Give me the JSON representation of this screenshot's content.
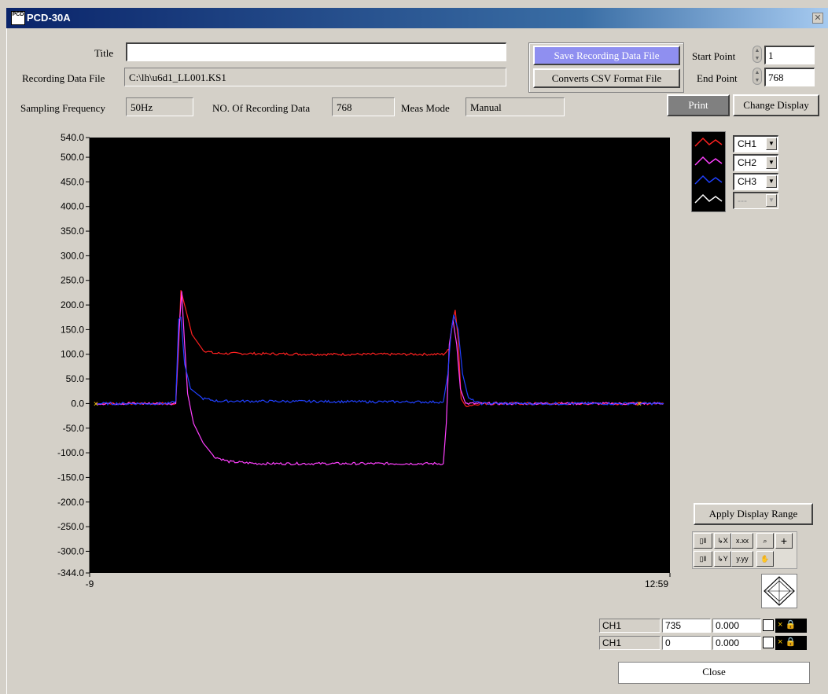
{
  "window": {
    "title": "PCD-30A",
    "app_icon": "PCD"
  },
  "header": {
    "title_label": "Title",
    "title_value": "",
    "recording_file_label": "Recording Data File",
    "recording_file_value": "C:\\lh\\u6d1_LL001.KS1",
    "sampling_label": "Sampling Frequency",
    "sampling_value": "50Hz",
    "num_data_label": "NO. Of Recording Data",
    "num_data_value": "768",
    "meas_mode_label": "Meas Mode",
    "meas_mode_value": "Manual"
  },
  "file_buttons": {
    "save": "Save Recording Data File",
    "convert": "Converts CSV Format File"
  },
  "range": {
    "start_label": "Start Point",
    "start_value": "1",
    "end_label": "End Point",
    "end_value": "768"
  },
  "actions": {
    "print": "Print",
    "change_display": "Change Display",
    "apply_range": "Apply Display Range",
    "close": "Close"
  },
  "channels": [
    {
      "label": "CH1",
      "color": "#ff2020"
    },
    {
      "label": "CH2",
      "color": "#ff40ff"
    },
    {
      "label": "CH3",
      "color": "#2040ff"
    },
    {
      "label": "---",
      "color": "#ffffff"
    }
  ],
  "graph_tools": {
    "x_format": "x.xx",
    "y_format": "y.yy"
  },
  "cursors": [
    {
      "channel": "CH1",
      "index": "735",
      "value": "0.000"
    },
    {
      "channel": "CH1",
      "index": "0",
      "value": "0.000"
    }
  ],
  "chart_data": {
    "type": "line",
    "ylim": [
      -344,
      540
    ],
    "yticks": [
      "540.0",
      "500.0",
      "450.0",
      "400.0",
      "350.0",
      "300.0",
      "250.0",
      "200.0",
      "150.0",
      "100.0",
      "50.0",
      "0.0",
      "-50.0",
      "-100.0",
      "-150.0",
      "-200.0",
      "-250.0",
      "-300.0",
      "-344.0"
    ],
    "xtick_labels": [
      "-9",
      "12:59"
    ],
    "x_sample_range": [
      0,
      768
    ],
    "background": "#000000",
    "series": [
      {
        "name": "CH1",
        "color": "#ff2020",
        "points": [
          [
            0,
            0
          ],
          [
            100,
            0
          ],
          [
            108,
            0
          ],
          [
            112,
            120
          ],
          [
            115,
            230
          ],
          [
            120,
            200
          ],
          [
            130,
            140
          ],
          [
            145,
            108
          ],
          [
            160,
            102
          ],
          [
            300,
            100
          ],
          [
            470,
            100
          ],
          [
            478,
            110
          ],
          [
            482,
            160
          ],
          [
            486,
            190
          ],
          [
            490,
            130
          ],
          [
            494,
            10
          ],
          [
            500,
            -5
          ],
          [
            520,
            0
          ],
          [
            768,
            0
          ]
        ]
      },
      {
        "name": "CH2",
        "color": "#ff40ff",
        "points": [
          [
            0,
            0
          ],
          [
            100,
            0
          ],
          [
            108,
            0
          ],
          [
            112,
            140
          ],
          [
            116,
            228
          ],
          [
            120,
            120
          ],
          [
            124,
            20
          ],
          [
            132,
            -40
          ],
          [
            145,
            -80
          ],
          [
            160,
            -108
          ],
          [
            180,
            -118
          ],
          [
            220,
            -122
          ],
          [
            470,
            -122
          ],
          [
            474,
            -40
          ],
          [
            478,
            120
          ],
          [
            483,
            170
          ],
          [
            488,
            120
          ],
          [
            493,
            30
          ],
          [
            500,
            0
          ],
          [
            768,
            0
          ]
        ]
      },
      {
        "name": "CH3",
        "color": "#2040ff",
        "points": [
          [
            0,
            0
          ],
          [
            100,
            0
          ],
          [
            108,
            5
          ],
          [
            112,
            170
          ],
          [
            115,
            175
          ],
          [
            120,
            80
          ],
          [
            128,
            30
          ],
          [
            145,
            10
          ],
          [
            165,
            5
          ],
          [
            470,
            3
          ],
          [
            476,
            60
          ],
          [
            480,
            140
          ],
          [
            484,
            180
          ],
          [
            490,
            150
          ],
          [
            496,
            60
          ],
          [
            504,
            10
          ],
          [
            520,
            0
          ],
          [
            768,
            0
          ]
        ]
      }
    ],
    "markers": [
      [
        0,
        0
      ],
      [
        735,
        0
      ]
    ]
  }
}
